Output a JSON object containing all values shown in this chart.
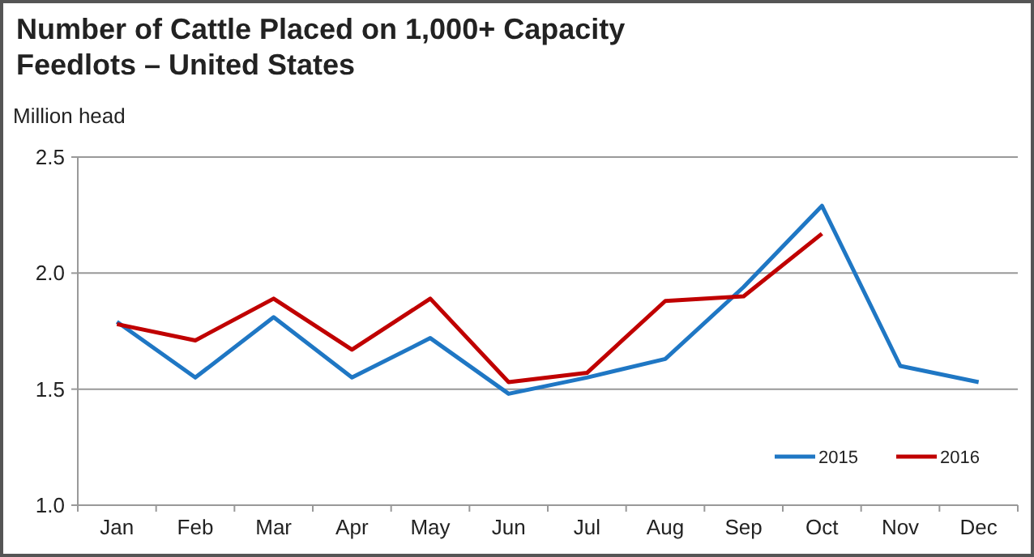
{
  "chart_data": {
    "type": "line",
    "title": "Number of Cattle Placed on 1,000+ Capacity Feedlots – United States",
    "ylabel": "Million head",
    "categories": [
      "Jan",
      "Feb",
      "Mar",
      "Apr",
      "May",
      "Jun",
      "Jul",
      "Aug",
      "Sep",
      "Oct",
      "Nov",
      "Dec"
    ],
    "series": [
      {
        "name": "2015",
        "color": "#1f77c4",
        "values": [
          1.79,
          1.55,
          1.81,
          1.55,
          1.72,
          1.48,
          1.55,
          1.63,
          1.94,
          2.29,
          1.6,
          1.53
        ]
      },
      {
        "name": "2016",
        "color": "#c00000",
        "values": [
          1.78,
          1.71,
          1.89,
          1.67,
          1.89,
          1.53,
          1.57,
          1.88,
          1.9,
          2.17,
          null,
          null
        ]
      }
    ],
    "ylim": [
      1,
      2.5
    ],
    "yticks": [
      {
        "value": 1,
        "label": "1.0"
      },
      {
        "value": 1.5,
        "label": "1.5"
      },
      {
        "value": 2,
        "label": "2.0"
      },
      {
        "value": 2.5,
        "label": "2.5"
      }
    ],
    "grid": "y",
    "legend": "bottom right",
    "marker": "none",
    "line_style": "solid"
  }
}
